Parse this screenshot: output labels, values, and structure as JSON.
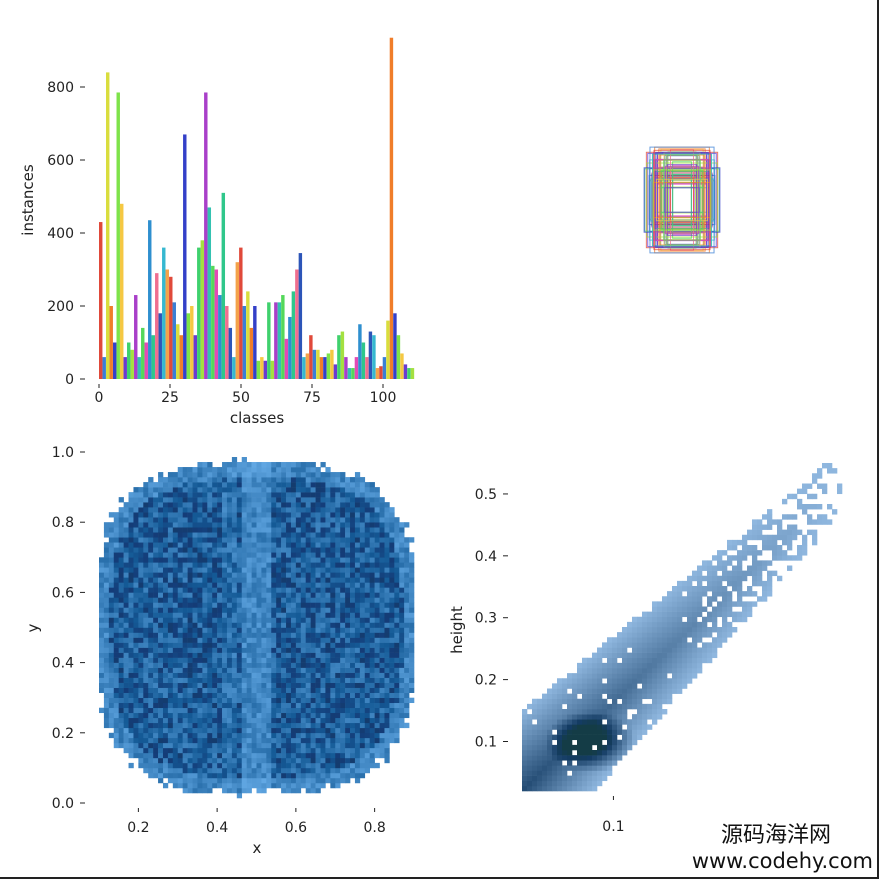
{
  "chart_data": [
    {
      "type": "bar",
      "xlabel": "classes",
      "ylabel": "instances",
      "xlim": [
        -2,
        112
      ],
      "ylim": [
        0,
        950
      ],
      "xticks": [
        "0",
        "25",
        "50",
        "75",
        "100"
      ],
      "yticks": [
        "0",
        "200",
        "400",
        "600",
        "800"
      ],
      "values": [
        430,
        60,
        840,
        200,
        100,
        785,
        480,
        60,
        100,
        80,
        230,
        60,
        140,
        100,
        435,
        120,
        290,
        180,
        360,
        300,
        280,
        210,
        150,
        120,
        670,
        180,
        200,
        120,
        360,
        380,
        785,
        470,
        310,
        300,
        230,
        510,
        200,
        140,
        60,
        320,
        360,
        200,
        240,
        140,
        200,
        50,
        60,
        50,
        210,
        50,
        210,
        210,
        230,
        110,
        170,
        240,
        300,
        345,
        60,
        70,
        120,
        80,
        80,
        60,
        60,
        70,
        80,
        40,
        120,
        130,
        60,
        30,
        30,
        60,
        150,
        100,
        60,
        130,
        120,
        30,
        35,
        60,
        160,
        935,
        180,
        120,
        70,
        40,
        30,
        30
      ]
    },
    {
      "type": "bbox-overlay",
      "note": ""
    },
    {
      "type": "heatmap",
      "xlabel": "x",
      "ylabel": "y",
      "xlim": [
        0.1,
        0.9
      ],
      "ylim": [
        0.0,
        1.0
      ],
      "xticks": [
        "0.2",
        "0.4",
        "0.6",
        "0.8"
      ],
      "yticks": [
        "0.0",
        "0.2",
        "0.4",
        "0.6",
        "0.8",
        "1.0"
      ],
      "color": "#2b7bd6"
    },
    {
      "type": "heatmap",
      "xlabel": "",
      "ylabel": "height",
      "xlim": [
        0.02,
        0.3
      ],
      "ylim": [
        0.02,
        0.55
      ],
      "xticks": [
        "0.1"
      ],
      "yticks": [
        "0.1",
        "0.2",
        "0.3",
        "0.4",
        "0.5"
      ],
      "color": "#2b7bd6"
    }
  ],
  "watermark": {
    "line1": "源码海洋网",
    "line2": "www.codehy.com"
  }
}
